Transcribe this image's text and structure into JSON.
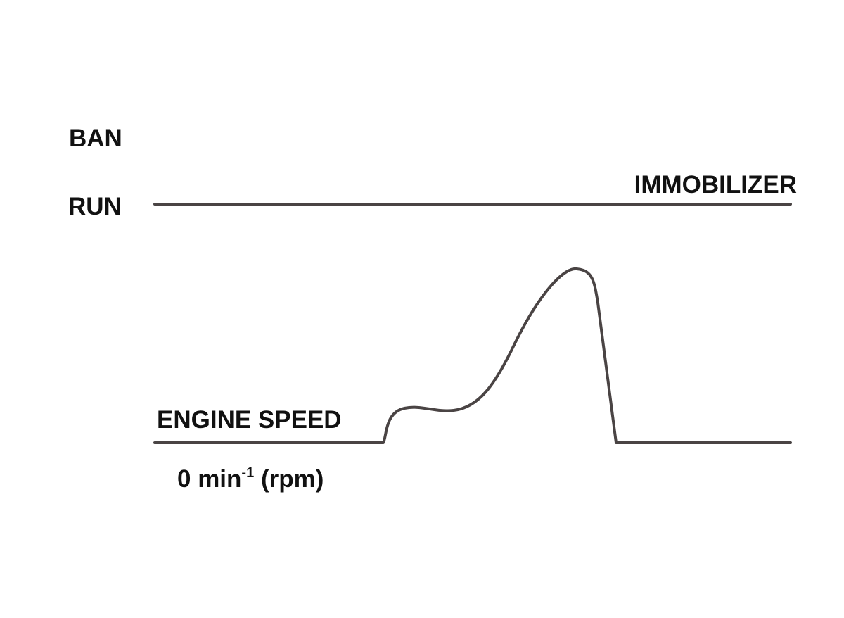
{
  "labels": {
    "ban": "BAN",
    "run": "RUN",
    "immobilizer": "IMMOBILIZER",
    "engine_speed": "ENGINE SPEED"
  },
  "zero_speed": {
    "text": "0 min",
    "superscript": "-1",
    "unit": " (rpm)"
  }
}
